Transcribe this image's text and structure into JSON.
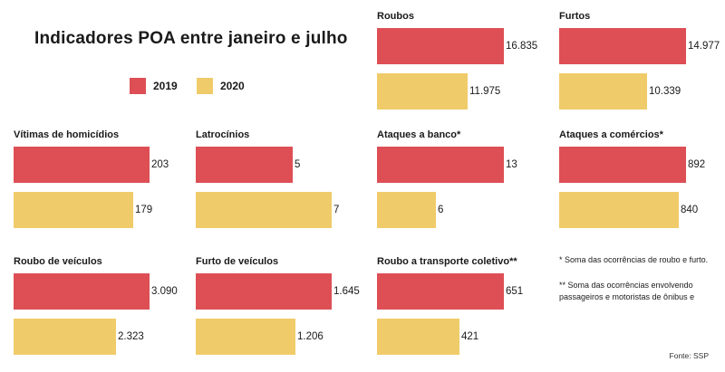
{
  "chart_data": {
    "type": "bar",
    "title": "Indicadores POA entre janeiro e julho",
    "legend": {
      "placement": "top-left",
      "entries": [
        "2019",
        "2020"
      ]
    },
    "series_colors": {
      "2019": "#dd4f55",
      "2020": "#f0cb6a"
    },
    "panels": [
      {
        "title": "Roubos",
        "values": {
          "2019": 16835,
          "2020": 11975
        },
        "labels": [
          "16.835",
          "11.975"
        ]
      },
      {
        "title": "Furtos",
        "values": {
          "2019": 14977,
          "2020": 10339
        },
        "labels": [
          "14.977",
          "10.339"
        ]
      },
      {
        "title": "Vítimas de homicídios",
        "values": {
          "2019": 203,
          "2020": 179
        },
        "labels": [
          "203",
          "179"
        ]
      },
      {
        "title": "Latrocínios",
        "values": {
          "2019": 5,
          "2020": 7
        },
        "labels": [
          "5",
          "7"
        ]
      },
      {
        "title": "Ataques a banco*",
        "values": {
          "2019": 13,
          "2020": 6
        },
        "labels": [
          "13",
          "6"
        ]
      },
      {
        "title": "Ataques a comércios*",
        "values": {
          "2019": 892,
          "2020": 840
        },
        "labels": [
          "892",
          "840"
        ]
      },
      {
        "title": "Roubo de veículos",
        "values": {
          "2019": 3090,
          "2020": 2323
        },
        "labels": [
          "3.090",
          "2.323"
        ]
      },
      {
        "title": "Furto de veículos",
        "values": {
          "2019": 1645,
          "2020": 1206
        },
        "labels": [
          "1.645",
          "1.206"
        ]
      },
      {
        "title": "Roubo a transporte coletivo**",
        "values": {
          "2019": 651,
          "2020": 421
        },
        "labels": [
          "651",
          "421"
        ]
      }
    ],
    "notes": [
      "* Soma das ocorrências de roubo e furto.",
      "** Soma das ocorrências envolvendo passageiros e motoristas de ônibus e"
    ],
    "source": "Fonte: SSP"
  }
}
